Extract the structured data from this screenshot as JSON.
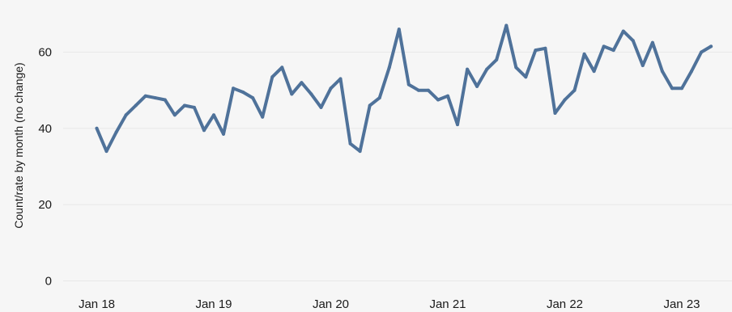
{
  "chart_data": {
    "type": "line",
    "ylabel": "Count/rate by month (no change)",
    "xlabel": "",
    "ylim": [
      0,
      70
    ],
    "y_ticks": [
      0,
      20,
      40,
      60
    ],
    "x_ticks": [
      "Jan 18",
      "Jan 19",
      "Jan 20",
      "Jan 21",
      "Jan 22",
      "Jan 23"
    ],
    "grid": true,
    "series": [
      {
        "color": "#4f729a",
        "x_start": "Jan 18",
        "values": [
          40,
          34,
          39,
          43.5,
          46,
          48.5,
          48,
          47.5,
          43.5,
          46,
          45.5,
          39.5,
          43.5,
          38.5,
          50.5,
          49.5,
          48,
          43,
          53.5,
          56,
          49,
          52,
          49,
          45.5,
          50.5,
          53,
          36,
          34,
          46,
          48,
          56,
          66,
          51.5,
          50,
          50,
          47.5,
          48.5,
          41,
          55.5,
          51,
          55.5,
          58,
          67,
          56,
          53.5,
          60.5,
          61,
          44,
          47.5,
          50,
          59.5,
          55,
          61.5,
          60.5,
          65.5,
          63,
          56.5,
          62.5,
          55,
          50.5,
          50.5,
          55,
          60,
          61.5
        ]
      }
    ]
  }
}
